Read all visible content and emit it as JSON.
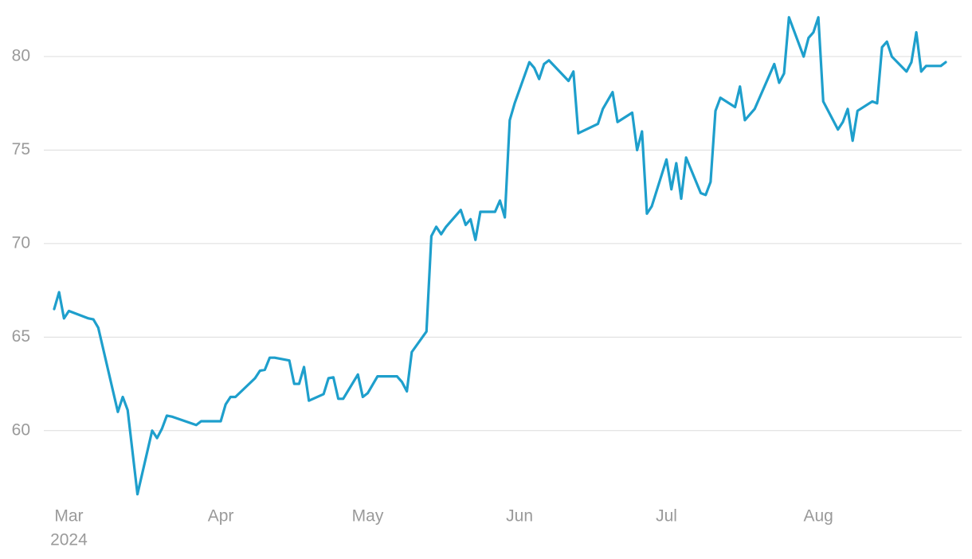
{
  "chart_data": {
    "type": "line",
    "x": [
      "2024-02-27",
      "2024-02-28",
      "2024-02-29",
      "2024-03-01",
      "2024-03-05",
      "2024-03-06",
      "2024-03-07",
      "2024-03-11",
      "2024-03-12",
      "2024-03-13",
      "2024-03-15",
      "2024-03-18",
      "2024-03-19",
      "2024-03-20",
      "2024-03-21",
      "2024-03-22",
      "2024-03-27",
      "2024-03-28",
      "2024-04-01",
      "2024-04-02",
      "2024-04-03",
      "2024-04-04",
      "2024-04-08",
      "2024-04-09",
      "2024-04-10",
      "2024-04-11",
      "2024-04-12",
      "2024-04-15",
      "2024-04-16",
      "2024-04-17",
      "2024-04-18",
      "2024-04-19",
      "2024-04-22",
      "2024-04-23",
      "2024-04-24",
      "2024-04-25",
      "2024-04-26",
      "2024-04-29",
      "2024-04-30",
      "2024-05-01",
      "2024-05-03",
      "2024-05-07",
      "2024-05-08",
      "2024-05-09",
      "2024-05-10",
      "2024-05-13",
      "2024-05-14",
      "2024-05-15",
      "2024-05-16",
      "2024-05-17",
      "2024-05-20",
      "2024-05-21",
      "2024-05-22",
      "2024-05-23",
      "2024-05-24",
      "2024-05-27",
      "2024-05-28",
      "2024-05-29",
      "2024-05-30",
      "2024-05-31",
      "2024-06-03",
      "2024-06-04",
      "2024-06-05",
      "2024-06-06",
      "2024-06-07",
      "2024-06-11",
      "2024-06-12",
      "2024-06-13",
      "2024-06-17",
      "2024-06-18",
      "2024-06-20",
      "2024-06-21",
      "2024-06-24",
      "2024-06-25",
      "2024-06-26",
      "2024-06-27",
      "2024-06-28",
      "2024-07-01",
      "2024-07-02",
      "2024-07-03",
      "2024-07-04",
      "2024-07-05",
      "2024-07-08",
      "2024-07-09",
      "2024-07-10",
      "2024-07-11",
      "2024-07-12",
      "2024-07-15",
      "2024-07-16",
      "2024-07-17",
      "2024-07-19",
      "2024-07-22",
      "2024-07-23",
      "2024-07-24",
      "2024-07-25",
      "2024-07-26",
      "2024-07-29",
      "2024-07-30",
      "2024-07-31",
      "2024-08-01",
      "2024-08-02",
      "2024-08-05",
      "2024-08-06",
      "2024-08-07",
      "2024-08-08",
      "2024-08-09",
      "2024-08-12",
      "2024-08-13",
      "2024-08-14",
      "2024-08-15",
      "2024-08-16",
      "2024-08-19",
      "2024-08-20",
      "2024-08-21",
      "2024-08-22",
      "2024-08-23",
      "2024-08-26",
      "2024-08-27"
    ],
    "values": [
      66.5,
      67.4,
      66.0,
      66.4,
      66.0,
      65.95,
      65.5,
      61.0,
      61.8,
      61.1,
      56.6,
      60.0,
      59.6,
      60.1,
      60.8,
      60.75,
      60.3,
      60.5,
      60.5,
      61.4,
      61.8,
      61.8,
      62.8,
      63.2,
      63.25,
      63.9,
      63.9,
      63.75,
      62.5,
      62.5,
      63.4,
      61.6,
      61.95,
      62.8,
      62.85,
      61.7,
      61.7,
      63.0,
      61.8,
      62.0,
      62.9,
      62.9,
      62.6,
      62.1,
      64.2,
      65.3,
      70.4,
      70.9,
      70.5,
      70.9,
      71.8,
      71.0,
      71.3,
      70.2,
      71.7,
      71.7,
      72.3,
      71.4,
      76.6,
      77.5,
      79.7,
      79.4,
      78.8,
      79.6,
      79.8,
      78.7,
      79.2,
      75.9,
      76.4,
      77.2,
      78.1,
      76.5,
      77.0,
      75.0,
      76.0,
      71.6,
      72.0,
      74.5,
      72.9,
      74.3,
      72.4,
      74.6,
      72.7,
      72.6,
      73.3,
      77.1,
      77.8,
      77.3,
      78.4,
      76.6,
      77.2,
      79.0,
      79.6,
      78.6,
      79.1,
      82.1,
      80.0,
      81.0,
      81.3,
      82.1,
      77.6,
      76.1,
      76.5,
      77.2,
      75.5,
      77.1,
      77.6,
      77.5,
      80.5,
      80.8,
      80.0,
      79.2,
      79.7,
      81.3,
      79.2,
      79.5,
      79.5,
      79.7
    ],
    "color": "#1e9fcc",
    "xlim": [
      "2024-02-27",
      "2024-08-27"
    ],
    "xticks": [
      {
        "value": "2024-03-01",
        "label": "Mar"
      },
      {
        "value": "2024-04-01",
        "label": "Apr"
      },
      {
        "value": "2024-05-01",
        "label": "May"
      },
      {
        "value": "2024-06-01",
        "label": "Jun"
      },
      {
        "value": "2024-07-01",
        "label": "Jul"
      },
      {
        "value": "2024-08-01",
        "label": "Aug"
      }
    ],
    "x_year_label": "2024",
    "ylim": [
      56.2,
      82.6
    ],
    "yticks": [
      60,
      65,
      70,
      75,
      80
    ],
    "grid": true
  }
}
